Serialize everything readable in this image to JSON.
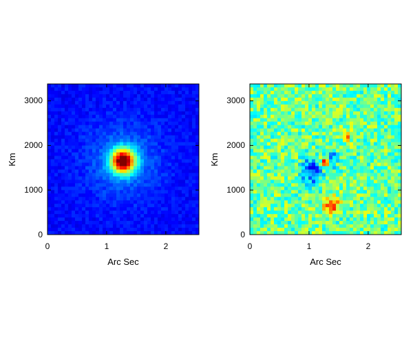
{
  "chart_data": [
    {
      "type": "heatmap",
      "colormap": "jet",
      "xlabel": "Arc Sec",
      "ylabel": "Km",
      "xlim": [
        0,
        2.56
      ],
      "ylim": [
        0,
        3380
      ],
      "xticks": [
        0,
        1,
        2
      ],
      "yticks": [
        0,
        1000,
        2000,
        3000
      ],
      "xtick_labels": [
        "0",
        "1",
        "2"
      ],
      "ytick_labels": [
        "0",
        "1000",
        "2000",
        "3000"
      ],
      "grid": false,
      "description_values": {
        "background_level": 0.13,
        "peaks": [
          {
            "x": 1.28,
            "y": 1650,
            "value": 1.0,
            "sigma_x": 0.14,
            "sigma_y": 185
          }
        ]
      }
    },
    {
      "type": "heatmap",
      "colormap": "jet",
      "xlabel": "Arc Sec",
      "ylabel": "Km",
      "xlim": [
        0,
        2.56
      ],
      "ylim": [
        0,
        3380
      ],
      "xticks": [
        0,
        1,
        2
      ],
      "yticks": [
        0,
        1000,
        2000,
        3000
      ],
      "xtick_labels": [
        "0",
        "1",
        "2"
      ],
      "ytick_labels": [
        "0",
        "1000",
        "2000",
        "3000"
      ],
      "grid": false,
      "description_values": {
        "background_level": 0.48,
        "peaks": [
          {
            "x": 1.28,
            "y": 1620,
            "value": 0.92,
            "sigma_x": 0.05,
            "sigma_y": 70
          },
          {
            "x": 1.38,
            "y": 660,
            "value": 0.85,
            "sigma_x": 0.09,
            "sigma_y": 120
          },
          {
            "x": 1.65,
            "y": 2200,
            "value": 0.72,
            "sigma_x": 0.05,
            "sigma_y": 80
          },
          {
            "x": 1.05,
            "y": 1400,
            "value": 0.18,
            "sigma_x": 0.12,
            "sigma_y": 220
          },
          {
            "x": 1.38,
            "y": 1700,
            "value": 0.25,
            "sigma_x": 0.06,
            "sigma_y": 150
          }
        ]
      }
    }
  ]
}
